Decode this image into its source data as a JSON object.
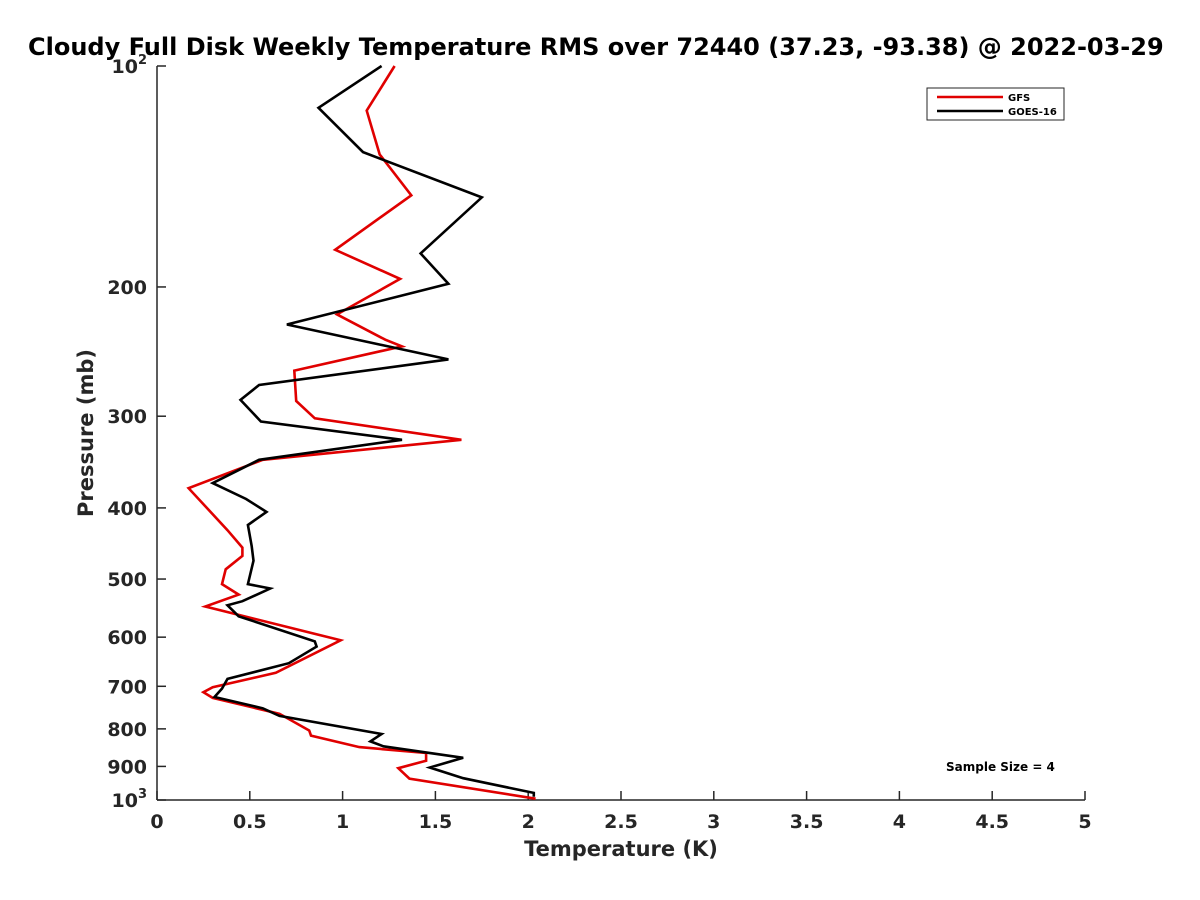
{
  "chart_data": {
    "type": "line",
    "title": "Cloudy Full Disk Weekly Temperature RMS over 72440 (37.23, -93.38) @ 2022-03-29",
    "xlabel": "Temperature (K)",
    "ylabel": "Pressure (mb)",
    "xlim": [
      0,
      5
    ],
    "ylim": [
      100,
      1000
    ],
    "y_scale": "log",
    "y_reversed": true,
    "x_ticks": [
      "0",
      "0.5",
      "1",
      "1.5",
      "2",
      "2.5",
      "3",
      "3.5",
      "4",
      "4.5",
      "5"
    ],
    "x_tick_values": [
      0,
      0.5,
      1,
      1.5,
      2,
      2.5,
      3,
      3.5,
      4,
      4.5,
      5
    ],
    "y_ticks": [
      {
        "value": 100,
        "label": "10",
        "sup": "2"
      },
      {
        "value": 200,
        "label": "200",
        "sup": ""
      },
      {
        "value": 300,
        "label": "300",
        "sup": ""
      },
      {
        "value": 400,
        "label": "400",
        "sup": ""
      },
      {
        "value": 500,
        "label": "500",
        "sup": ""
      },
      {
        "value": 600,
        "label": "600",
        "sup": ""
      },
      {
        "value": 700,
        "label": "700",
        "sup": ""
      },
      {
        "value": 800,
        "label": "800",
        "sup": ""
      },
      {
        "value": 900,
        "label": "900",
        "sup": ""
      },
      {
        "value": 1000,
        "label": "10",
        "sup": "3"
      }
    ],
    "grid": false,
    "legend_position": "top-right",
    "annotation": "Sample Size = 4",
    "series": [
      {
        "name": "GFS",
        "color": "#e00000",
        "points": [
          [
            1.28,
            100
          ],
          [
            1.13,
            115
          ],
          [
            1.2,
            132
          ],
          [
            1.37,
            150
          ],
          [
            0.96,
            178
          ],
          [
            1.31,
            195
          ],
          [
            0.97,
            218
          ],
          [
            1.23,
            236
          ],
          [
            1.32,
            241
          ],
          [
            0.74,
            260
          ],
          [
            0.75,
            286
          ],
          [
            0.85,
            302
          ],
          [
            1.64,
            323
          ],
          [
            0.57,
            344
          ],
          [
            0.17,
            376
          ],
          [
            0.38,
            429
          ],
          [
            0.46,
            453
          ],
          [
            0.46,
            465
          ],
          [
            0.37,
            485
          ],
          [
            0.35,
            508
          ],
          [
            0.44,
            525
          ],
          [
            0.26,
            545
          ],
          [
            0.99,
            606
          ],
          [
            0.64,
            671
          ],
          [
            0.3,
            702
          ],
          [
            0.25,
            713
          ],
          [
            0.3,
            726
          ],
          [
            0.66,
            763
          ],
          [
            0.82,
            804
          ],
          [
            0.83,
            817
          ],
          [
            1.09,
            847
          ],
          [
            1.45,
            863
          ],
          [
            1.45,
            884
          ],
          [
            1.3,
            905
          ],
          [
            1.36,
            935
          ],
          [
            2.04,
            996
          ]
        ]
      },
      {
        "name": "GOES-16",
        "color": "#000000",
        "points": [
          [
            1.21,
            100
          ],
          [
            0.87,
            114
          ],
          [
            1.11,
            131
          ],
          [
            1.75,
            151
          ],
          [
            1.42,
            180
          ],
          [
            1.57,
            198
          ],
          [
            0.7,
            225
          ],
          [
            1.57,
            251
          ],
          [
            0.55,
            272
          ],
          [
            0.45,
            285
          ],
          [
            0.56,
            305
          ],
          [
            1.32,
            323
          ],
          [
            0.55,
            344
          ],
          [
            0.3,
            370
          ],
          [
            0.48,
            389
          ],
          [
            0.59,
            405
          ],
          [
            0.49,
            422
          ],
          [
            0.51,
            451
          ],
          [
            0.52,
            472
          ],
          [
            0.49,
            508
          ],
          [
            0.61,
            515
          ],
          [
            0.46,
            536
          ],
          [
            0.38,
            543
          ],
          [
            0.44,
            562
          ],
          [
            0.85,
            608
          ],
          [
            0.86,
            618
          ],
          [
            0.71,
            651
          ],
          [
            0.38,
            684
          ],
          [
            0.35,
            705
          ],
          [
            0.31,
            724
          ],
          [
            0.57,
            750
          ],
          [
            0.66,
            768
          ],
          [
            1.21,
            813
          ],
          [
            1.15,
            832
          ],
          [
            1.22,
            845
          ],
          [
            1.65,
            876
          ],
          [
            1.47,
            903
          ],
          [
            1.65,
            934
          ],
          [
            2.03,
            978
          ],
          [
            2.03,
            990
          ]
        ]
      }
    ]
  }
}
